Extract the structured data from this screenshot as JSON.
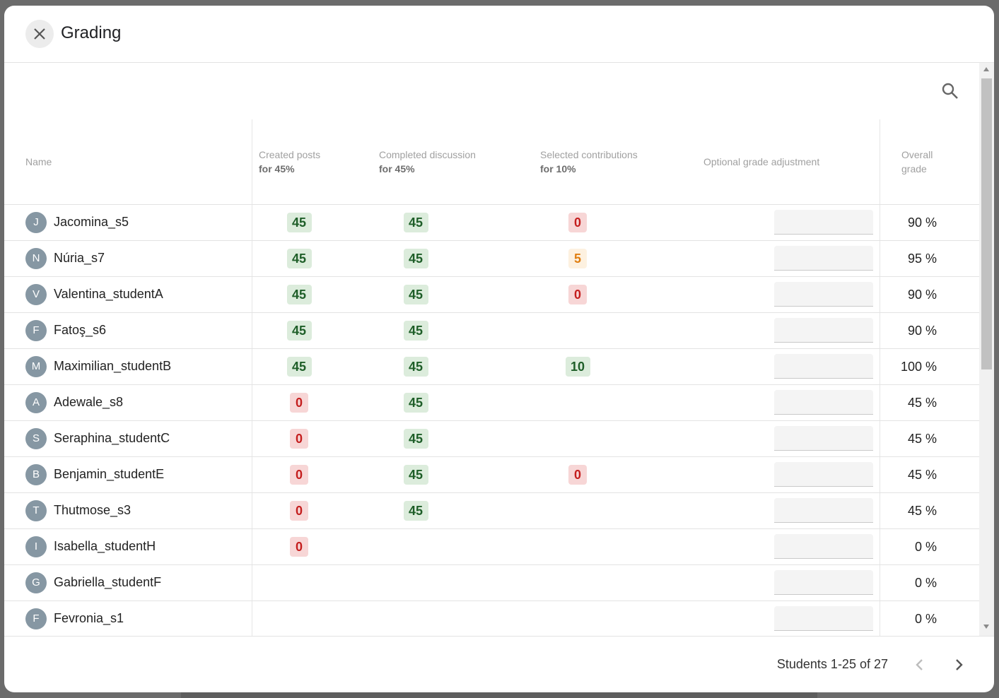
{
  "dialog": {
    "title": "Grading",
    "close_icon": "close-icon",
    "search_icon": "search-icon"
  },
  "columns": {
    "name": "Name",
    "created_posts": {
      "label": "Created posts",
      "weight": "for 45%"
    },
    "completed_discussion": {
      "label": "Completed discussion",
      "weight": "for 45%"
    },
    "selected_contributions": {
      "label": "Selected contributions",
      "weight": "for 10%"
    },
    "adjustment": "Optional grade adjustment",
    "overall": {
      "line1": "Overall",
      "line2": "grade"
    }
  },
  "students": [
    {
      "initial": "J",
      "name": "Jacomina_s5",
      "created": "45",
      "completed": "45",
      "selected": "0",
      "selected_color": "red",
      "overall": "90 %"
    },
    {
      "initial": "N",
      "name": "Núria_s7",
      "created": "45",
      "completed": "45",
      "selected": "5",
      "selected_color": "orange",
      "overall": "95 %"
    },
    {
      "initial": "V",
      "name": "Valentina_studentA",
      "created": "45",
      "completed": "45",
      "selected": "0",
      "selected_color": "red",
      "overall": "90 %"
    },
    {
      "initial": "F",
      "name": "Fatoş_s6",
      "created": "45",
      "completed": "45",
      "selected": "",
      "selected_color": "",
      "overall": "90 %"
    },
    {
      "initial": "M",
      "name": "Maximilian_studentB",
      "created": "45",
      "completed": "45",
      "selected": "10",
      "selected_color": "green",
      "overall": "100 %"
    },
    {
      "initial": "A",
      "name": "Adewale_s8",
      "created": "0",
      "completed": "45",
      "selected": "",
      "selected_color": "",
      "overall": "45 %"
    },
    {
      "initial": "S",
      "name": "Seraphina_studentC",
      "created": "0",
      "completed": "45",
      "selected": "",
      "selected_color": "",
      "overall": "45 %"
    },
    {
      "initial": "B",
      "name": "Benjamin_studentE",
      "created": "0",
      "completed": "45",
      "selected": "0",
      "selected_color": "red",
      "overall": "45 %"
    },
    {
      "initial": "T",
      "name": "Thutmose_s3",
      "created": "0",
      "completed": "45",
      "selected": "",
      "selected_color": "",
      "overall": "45 %"
    },
    {
      "initial": "I",
      "name": "Isabella_studentH",
      "created": "0",
      "completed": "",
      "selected": "",
      "selected_color": "",
      "overall": "0 %"
    },
    {
      "initial": "G",
      "name": "Gabriella_studentF",
      "created": "",
      "completed": "",
      "selected": "",
      "selected_color": "",
      "overall": "0 %"
    },
    {
      "initial": "F",
      "name": "Fevronia_s1",
      "created": "",
      "completed": "",
      "selected": "",
      "selected_color": "",
      "overall": "0 %"
    }
  ],
  "pagination": {
    "info": "Students 1-25 of 27",
    "prev_icon": "chevron-left-icon",
    "next_icon": "chevron-right-icon"
  },
  "colors": {
    "chip_green_bg": "#dcecdc",
    "chip_green_text": "#1e5e28",
    "chip_red_bg": "#f7d6d6",
    "chip_red_text": "#c41e1e",
    "chip_orange_bg": "#fdf1e0",
    "chip_orange_text": "#e07e10",
    "avatar_bg": "#8697a3"
  }
}
